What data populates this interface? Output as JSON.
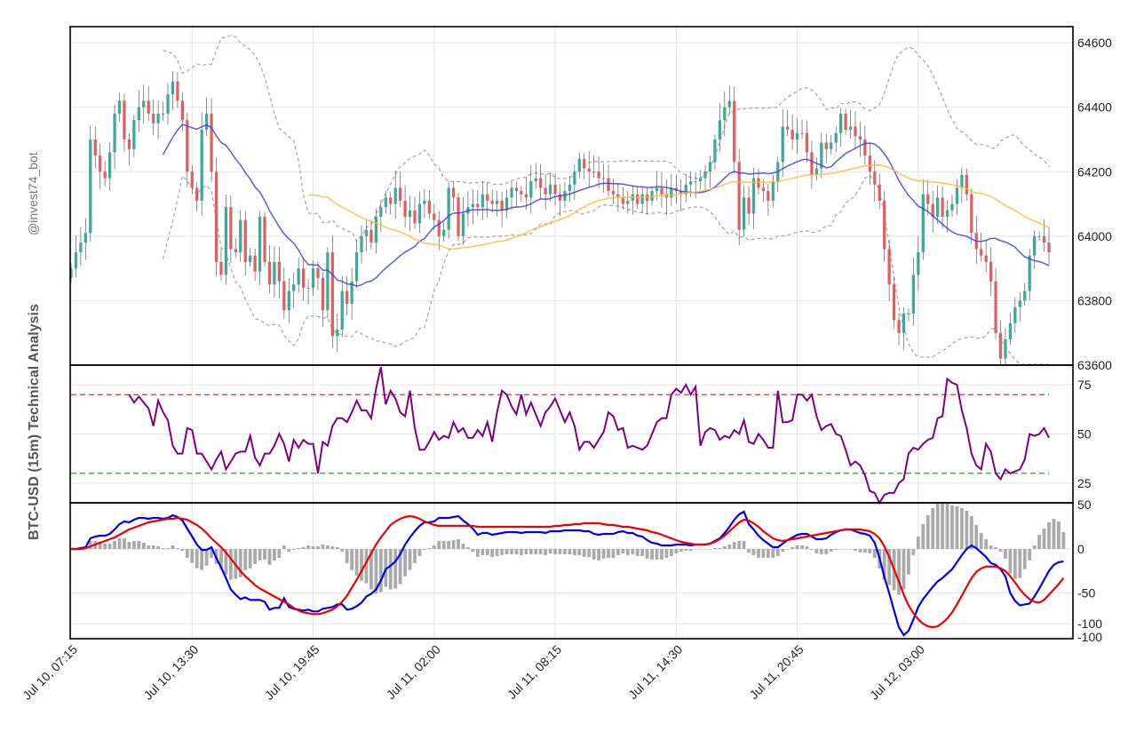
{
  "figure": {
    "side_title": "BTC-USD (15m) Technical Analysis",
    "handle": "@invest74_bot"
  },
  "colors": {
    "up": "#3aab98",
    "down": "#e35f5f",
    "sma20": "#3d3ded",
    "sma50": "#ffb833",
    "bands": "#aaaaaa",
    "rsi": "#800080",
    "overbought": "#ee3030",
    "oversold": "#2ea02e",
    "macd": "#0000ee",
    "signal": "#ee0000",
    "histogram": "#aaaaaa",
    "grid": "#e4e4e4"
  },
  "chart_data": [
    {
      "panel": "price",
      "type": "candlestick",
      "ylim": [
        63600,
        64650
      ],
      "y_ticks": [
        "63600",
        "63800",
        "64000",
        "64200",
        "64400",
        "64600"
      ],
      "x_ticks": [
        "Jul 10, 07:15",
        "Jul 10, 13:30",
        "Jul 10, 19:45",
        "Jul 11, 02:00",
        "Jul 11, 08:15",
        "Jul 11, 14:30",
        "Jul 11, 20:45",
        "Jul 12, 03:00"
      ],
      "series": [
        {
          "name": "",
          "kind": "close",
          "values": [
            63900,
            63950,
            63980,
            64010,
            64300,
            64250,
            64200,
            64180,
            64260,
            64380,
            64420,
            64300,
            64270,
            64360,
            64400,
            64420,
            64380,
            64350,
            64380,
            64380,
            64440,
            64480,
            64420,
            64360,
            64200,
            64150,
            64110,
            64330,
            64380,
            64200,
            63920,
            63880,
            64090,
            63960,
            63950,
            64050,
            63920,
            63940,
            63890,
            64060,
            63920,
            63850,
            63920,
            63860,
            63770,
            63830,
            63850,
            63900,
            63840,
            63840,
            63900,
            63870,
            63770,
            63950,
            63690,
            63710,
            63830,
            63790,
            63860,
            63950,
            64000,
            64020,
            63980,
            64060,
            64090,
            64120,
            64100,
            64150,
            64110,
            64060,
            64080,
            64040,
            64100,
            64110,
            64070,
            64050,
            64000,
            64020,
            64150,
            64120,
            64000,
            64070,
            64090,
            64100,
            64090,
            64130,
            64110,
            64100,
            64110,
            64080,
            64120,
            64150,
            64140,
            64130,
            64120,
            64170,
            64180,
            64150,
            64130,
            64160,
            64130,
            64110,
            64140,
            64160,
            64200,
            64240,
            64210,
            64200,
            64200,
            64180,
            64180,
            64140,
            64130,
            64120,
            64100,
            64110,
            64130,
            64100,
            64130,
            64110,
            64140,
            64150,
            64130,
            64120,
            64150,
            64140,
            64130,
            64160,
            64170,
            64170,
            64180,
            64200,
            64230,
            64300,
            64360,
            64400,
            64420,
            64230,
            64020,
            64120,
            64070,
            64180,
            64150,
            64140,
            64110,
            64170,
            64230,
            64340,
            64330,
            64300,
            64320,
            64320,
            64260,
            64190,
            64210,
            64290,
            64270,
            64290,
            64320,
            64380,
            64330,
            64340,
            64310,
            64300,
            64250,
            64200,
            64160,
            64110,
            63960,
            63850,
            63740,
            63700,
            63760,
            63760,
            63880,
            63950,
            64130,
            64100,
            64060,
            64120,
            64060,
            64080,
            64100,
            64150,
            64190,
            64130,
            64010,
            63960,
            63940,
            63920,
            63860,
            63700,
            63620,
            63680,
            63730,
            63780,
            63800,
            63830,
            63940,
            64000,
            64000,
            63980,
            63950
          ]
        }
      ]
    },
    {
      "panel": "rsi",
      "type": "line",
      "ylim": [
        15,
        85
      ],
      "y_ticks": [
        "25",
        "50",
        "75"
      ],
      "levels": {
        "overbought": 70,
        "oversold": 30
      },
      "series": [
        {
          "name": "",
          "values": [
            70,
            66,
            69,
            66,
            63,
            54,
            67,
            61,
            57,
            44,
            40,
            40,
            53,
            52,
            40,
            40,
            36,
            32,
            37,
            41,
            32,
            36,
            40,
            41,
            41,
            49,
            38,
            34,
            40,
            40,
            44,
            50,
            45,
            36,
            47,
            43,
            47,
            45,
            45,
            30,
            46,
            44,
            54,
            58,
            58,
            56,
            61,
            67,
            62,
            62,
            58,
            73,
            84,
            65,
            72,
            68,
            61,
            59,
            72,
            53,
            42,
            42,
            46,
            51,
            47,
            49,
            48,
            56,
            51,
            53,
            48,
            48,
            52,
            49,
            56,
            46,
            61,
            72,
            70,
            64,
            60,
            70,
            60,
            66,
            60,
            54,
            61,
            64,
            68,
            62,
            56,
            61,
            54,
            42,
            46,
            46,
            43,
            47,
            51,
            61,
            59,
            52,
            53,
            43,
            44,
            43,
            42,
            44,
            50,
            56,
            58,
            58,
            70,
            73,
            71,
            75,
            70,
            74,
            44,
            51,
            53,
            52,
            47,
            49,
            48,
            52,
            50,
            57,
            46,
            45,
            50,
            47,
            43,
            43,
            72,
            56,
            56,
            57,
            70,
            70,
            67,
            70,
            59,
            52,
            54,
            55,
            50,
            49,
            42,
            34,
            36,
            34,
            29,
            21,
            20,
            15,
            19,
            20,
            20,
            25,
            27,
            40,
            43,
            42,
            45,
            47,
            48,
            58,
            59,
            78,
            76,
            75,
            62,
            53,
            40,
            34,
            32,
            45,
            41,
            30,
            27,
            32,
            30,
            31,
            32,
            37,
            50,
            49,
            50,
            53,
            48
          ]
        }
      ]
    },
    {
      "panel": "macd",
      "type": "line",
      "ylim": [
        -100,
        50
      ],
      "y_ticks": [
        "-100",
        "-100",
        "-50",
        "0",
        "50"
      ],
      "series": [
        {
          "name": "",
          "kind": "macd",
          "values": [
            0,
            0,
            1,
            2,
            12,
            14,
            15,
            15,
            17,
            22,
            28,
            31,
            30,
            33,
            35,
            35,
            34,
            35,
            35,
            34,
            35,
            38,
            36,
            32,
            23,
            14,
            5,
            -1,
            -1,
            2,
            -10,
            -21,
            -33,
            -46,
            -52,
            -57,
            -55,
            -58,
            -58,
            -58,
            -60,
            -69,
            -67,
            -67,
            -56,
            -66,
            -68,
            -69,
            -70,
            -69,
            -71,
            -71,
            -68,
            -67,
            -66,
            -63,
            -63,
            -69,
            -68,
            -65,
            -61,
            -54,
            -51,
            -46,
            -36,
            -23,
            -19,
            -14,
            -6,
            5,
            13,
            20,
            26,
            30,
            30,
            31,
            35,
            35,
            35,
            36,
            37,
            32,
            28,
            23,
            16,
            18,
            18,
            16,
            17,
            18,
            19,
            19,
            19,
            18,
            19,
            19,
            19,
            19,
            18,
            20,
            20,
            20,
            21,
            21,
            21,
            21,
            20,
            20,
            17,
            16,
            17,
            17,
            17,
            19,
            20,
            18,
            18,
            15,
            14,
            10,
            7,
            6,
            4,
            4,
            4,
            5,
            5,
            5,
            4,
            5,
            5,
            5,
            6,
            9,
            12,
            18,
            25,
            33,
            39,
            42,
            28,
            22,
            15,
            10,
            6,
            2,
            2,
            6,
            10,
            13,
            16,
            17,
            17,
            14,
            11,
            11,
            12,
            16,
            19,
            21,
            22,
            22,
            20,
            18,
            17,
            15,
            7,
            -10,
            -32,
            -50,
            -70,
            -89,
            -98,
            -93,
            -80,
            -66,
            -57,
            -50,
            -43,
            -37,
            -33,
            -28,
            -23,
            -15,
            -7,
            0,
            4,
            1,
            -4,
            -9,
            -16,
            -18,
            -23,
            -31,
            -50,
            -59,
            -64,
            -63,
            -62,
            -54,
            -45,
            -35,
            -25,
            -18,
            -15,
            -14
          ]
        },
        {
          "name": "",
          "kind": "signal",
          "values": [
            0,
            0,
            0,
            1,
            3,
            5,
            7,
            9,
            11,
            13,
            16,
            19,
            22,
            24,
            26,
            28,
            30,
            31,
            32,
            33,
            34,
            34,
            35,
            34,
            33,
            30,
            27,
            23,
            18,
            12,
            7,
            2,
            -4,
            -11,
            -18,
            -25,
            -31,
            -36,
            -41,
            -45,
            -48,
            -51,
            -54,
            -57,
            -60,
            -63,
            -67,
            -70,
            -72,
            -73,
            -74,
            -74,
            -73,
            -71,
            -69,
            -65,
            -60,
            -53,
            -44,
            -35,
            -25,
            -15,
            -5,
            5,
            13,
            20,
            27,
            31,
            34,
            36,
            37,
            36,
            34,
            31,
            29,
            27,
            26,
            26,
            26,
            26,
            26,
            26,
            26,
            26,
            25,
            25,
            25,
            25,
            25,
            25,
            25,
            25,
            25,
            25,
            25,
            25,
            25,
            25,
            25,
            25,
            26,
            26,
            27,
            27,
            28,
            28,
            29,
            29,
            29,
            29,
            28,
            27,
            27,
            26,
            25,
            25,
            24,
            23,
            22,
            21,
            19,
            18,
            16,
            14,
            12,
            10,
            8,
            7,
            6,
            5,
            5,
            5,
            6,
            8,
            11,
            15,
            20,
            25,
            30,
            33,
            32,
            29,
            25,
            20,
            16,
            12,
            10,
            9,
            10,
            11,
            12,
            13,
            14,
            15,
            16,
            17,
            18,
            19,
            20,
            21,
            22,
            22,
            22,
            22,
            21,
            20,
            17,
            12,
            3,
            -9,
            -23,
            -37,
            -52,
            -64,
            -73,
            -80,
            -85,
            -88,
            -89,
            -88,
            -84,
            -79,
            -72,
            -63,
            -53,
            -43,
            -33,
            -26,
            -22,
            -20,
            -20,
            -20,
            -22,
            -25,
            -31,
            -38,
            -46,
            -52,
            -57,
            -60,
            -61,
            -58,
            -52,
            -46,
            -40,
            -33
          ]
        },
        {
          "name": "",
          "kind": "histogram",
          "values": [
            0,
            0,
            1,
            2,
            9,
            9,
            8,
            6,
            6,
            9,
            12,
            12,
            8,
            9,
            9,
            7,
            4,
            4,
            3,
            1,
            1,
            4,
            1,
            -2,
            -10,
            -16,
            -22,
            -24,
            -19,
            -10,
            -17,
            -23,
            -29,
            -35,
            -34,
            -32,
            -24,
            -22,
            -17,
            -13,
            -12,
            -18,
            -13,
            -10,
            4,
            -3,
            -1,
            1,
            2,
            4,
            3,
            3,
            5,
            4,
            3,
            2,
            -3,
            -16,
            -24,
            -30,
            -36,
            -39,
            -46,
            -51,
            -49,
            -43,
            -46,
            -45,
            -40,
            -31,
            -24,
            -16,
            -8,
            -1,
            1,
            4,
            9,
            9,
            9,
            10,
            11,
            6,
            2,
            -3,
            -9,
            -7,
            -7,
            -9,
            -8,
            -7,
            -6,
            -6,
            -6,
            -7,
            -6,
            -6,
            -6,
            -6,
            -7,
            -5,
            -6,
            -6,
            -6,
            -6,
            -7,
            -7,
            -9,
            -9,
            -12,
            -13,
            -11,
            -10,
            -10,
            -7,
            -5,
            -7,
            -6,
            -8,
            -8,
            -11,
            -12,
            -12,
            -12,
            -10,
            -8,
            -5,
            -3,
            -2,
            -2,
            0,
            0,
            0,
            0,
            1,
            1,
            3,
            5,
            8,
            9,
            9,
            -4,
            -7,
            -10,
            -10,
            -10,
            -10,
            -8,
            -3,
            0,
            2,
            4,
            4,
            3,
            -1,
            -5,
            -6,
            -6,
            -3,
            -1,
            0,
            0,
            0,
            -2,
            -4,
            -4,
            -5,
            -10,
            -22,
            -35,
            -41,
            -47,
            -52,
            -46,
            -29,
            -7,
            14,
            28,
            38,
            46,
            51,
            51,
            51,
            49,
            48,
            46,
            43,
            37,
            27,
            18,
            11,
            4,
            2,
            -3,
            -11,
            -28,
            -34,
            -33,
            -23,
            -13,
            4,
            16,
            23,
            30,
            34,
            31,
            19
          ]
        }
      ]
    }
  ]
}
